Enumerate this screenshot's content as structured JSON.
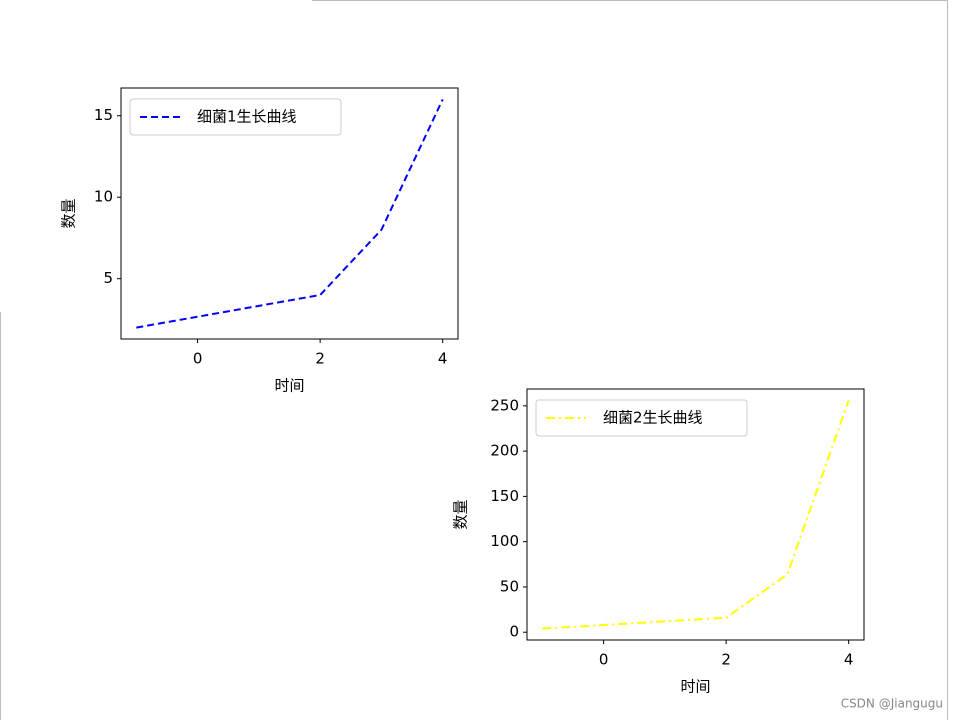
{
  "chart_data": [
    {
      "type": "line",
      "x": [
        -1,
        2,
        3,
        4
      ],
      "series": [
        {
          "name": "细菌1生长曲线",
          "color": "#0000ff",
          "linestyle": "dashed",
          "values": [
            2,
            4,
            8,
            16
          ]
        }
      ],
      "xlabel": "时间",
      "ylabel": "数量",
      "xlim": [
        -1.25,
        4.25
      ],
      "ylim": [
        1.3,
        16.7
      ],
      "xticks": [
        0,
        2,
        4
      ],
      "yticks": [
        5,
        10,
        15
      ],
      "legend": "upper left"
    },
    {
      "type": "line",
      "x": [
        -1,
        2,
        3,
        4
      ],
      "series": [
        {
          "name": "细菌2生长曲线",
          "color": "#ffff00",
          "linestyle": "dashdot",
          "values": [
            4,
            16,
            64,
            256
          ]
        }
      ],
      "xlabel": "时间",
      "ylabel": "数量",
      "xlim": [
        -1.25,
        4.25
      ],
      "ylim": [
        -8.6,
        268.6
      ],
      "xticks": [
        0,
        2,
        4
      ],
      "yticks": [
        0,
        50,
        100,
        150,
        200,
        250
      ],
      "legend": "upper left"
    }
  ],
  "watermark": "CSDN @Jiangugu"
}
